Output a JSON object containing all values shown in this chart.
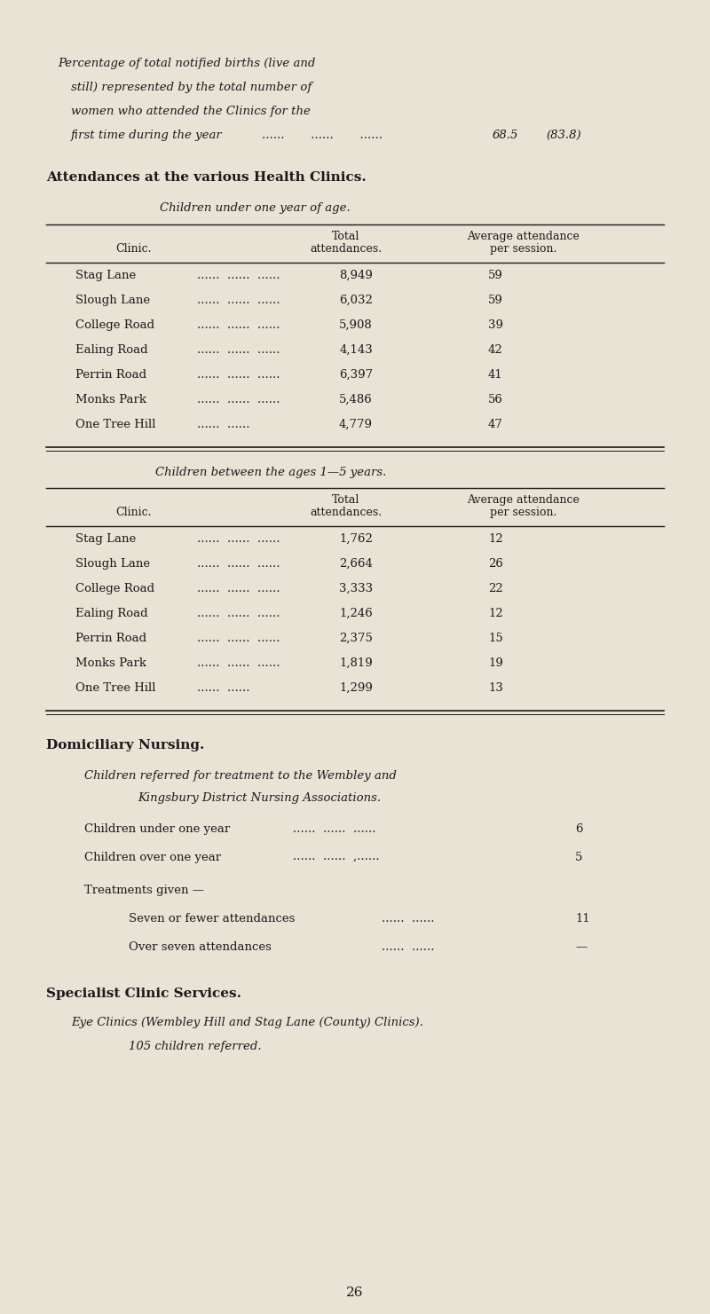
{
  "bg_color": "#e8e3d5",
  "text_color": "#1a1a1a",
  "intro_lines": [
    "Percentage of total notified births (live and",
    "still) represented by the total number of",
    "women who attended the Clinics for the",
    "first time during the year"
  ],
  "intro_dots": "......       ......       ......",
  "intro_value": "68.5",
  "intro_bracket": "(83.8)",
  "section1_bold": "Attendances at the various Health Clinics.",
  "section1_sub": "Children under one year of age.",
  "table1_rows": [
    [
      "Stag Lane",
      "......  ......  ......",
      "8,949",
      "59"
    ],
    [
      "Slough Lane",
      "......  ......  ......",
      "6,032",
      "59"
    ],
    [
      "College Road",
      "......  ......  ......",
      "5,908",
      "39"
    ],
    [
      "Ealing Road",
      "......  ......  ......",
      "4,143",
      "42"
    ],
    [
      "Perrin Road",
      "......  ......  ......",
      "6,397",
      "41"
    ],
    [
      "Monks Park",
      "......  ......  ......",
      "5,486",
      "56"
    ],
    [
      "One Tree Hill",
      "......  ......",
      "4,779",
      "47"
    ]
  ],
  "section2_sub": "Children between the ages 1—5 years.",
  "table2_rows": [
    [
      "Stag Lane",
      "......  ......  ......",
      "1,762",
      "12"
    ],
    [
      "Slough Lane",
      "......  ......  ......",
      "2,664",
      "26"
    ],
    [
      "College Road",
      "......  ......  ......",
      "3,333",
      "22"
    ],
    [
      "Ealing Road",
      "......  ......  ......",
      "1,246",
      "12"
    ],
    [
      "Perrin Road",
      "......  ......  ......",
      "2,375",
      "15"
    ],
    [
      "Monks Park",
      "......  ......  ......",
      "1,819",
      "19"
    ],
    [
      "One Tree Hill",
      "......  ......",
      "1,299",
      "13"
    ]
  ],
  "dom_nursing_bold": "Domiciliary Nursing.",
  "dom_nursing_text1": "Children referred for treatment to the Wembley and",
  "dom_nursing_text2": "Kingsbury District Nursing Associations.",
  "dom_rows": [
    [
      "Children under one year",
      "......  ......  ......",
      "6"
    ],
    [
      "Children over one year",
      "......  ......  ,......",
      "5"
    ]
  ],
  "treatments_label": "Treatments given —",
  "treatments_rows": [
    [
      "Seven or fewer attendances",
      "......  ......",
      "11"
    ],
    [
      "Over seven attendances",
      "......  ......",
      "—"
    ]
  ],
  "specialist_bold": "Specialist Clinic Services.",
  "specialist_line1": "Eye Clinics (Wembley Hill and Stag Lane (County) Clinics).",
  "specialist_line2": "105 children referred.",
  "page_number": "26"
}
